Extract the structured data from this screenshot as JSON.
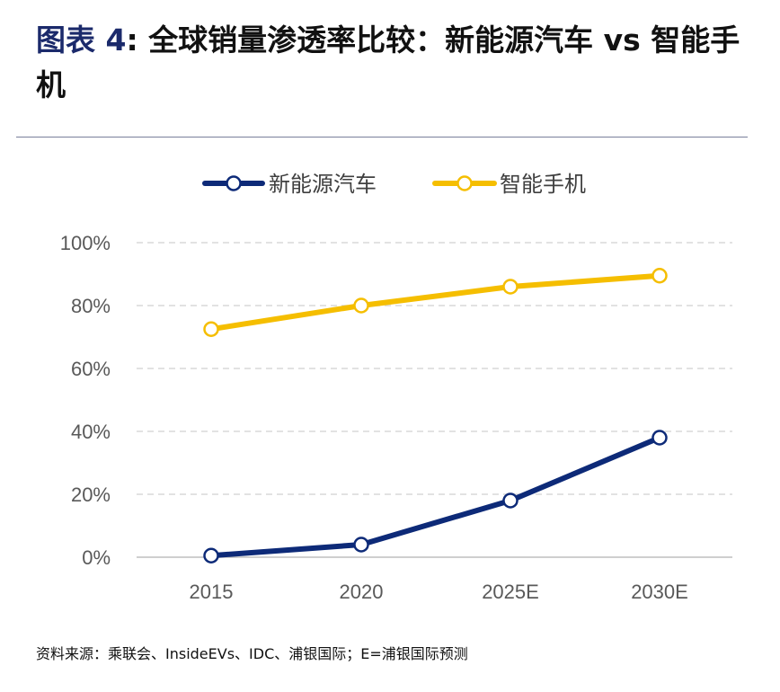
{
  "title": {
    "figure_label": "图表 4",
    "text": ": 全球销量渗透率比较：新能源汽车 vs 智能手机"
  },
  "source": "资料来源：乘联会、InsideEVs、IDC、浦银国际；E=浦银国际预测",
  "colors": {
    "ev": "#0d2a78",
    "phone": "#f5be00",
    "grid": "#d9d9d9",
    "axis": "#bfbfbf",
    "text": "#595959"
  },
  "chart_data": {
    "type": "line",
    "categories": [
      "2015",
      "2020",
      "2025E",
      "2030E"
    ],
    "series": [
      {
        "name": "新能源汽车",
        "values": [
          0.5,
          4,
          18,
          38
        ]
      },
      {
        "name": "智能手机",
        "values": [
          72.5,
          80,
          86,
          89.5
        ]
      }
    ],
    "ylim": [
      0,
      100
    ],
    "yticks": [
      "0%",
      "20%",
      "40%",
      "60%",
      "80%",
      "100%"
    ],
    "grid": true,
    "legend": "top-center"
  }
}
